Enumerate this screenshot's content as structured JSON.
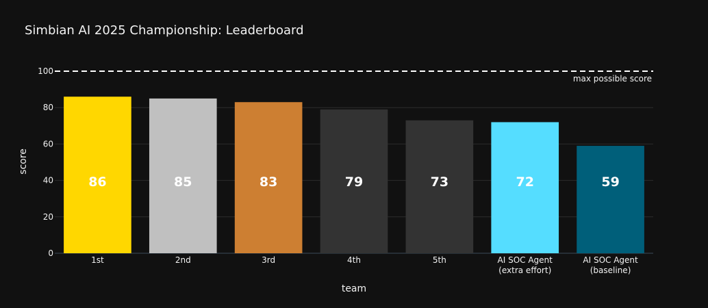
{
  "chart_data": {
    "type": "bar",
    "title": "Simbian AI 2025 Championship: Leaderboard",
    "xlabel": "team",
    "ylabel": "score",
    "ylim": [
      0,
      100
    ],
    "yticks": [
      0,
      20,
      40,
      60,
      80,
      100
    ],
    "grid": true,
    "categories": [
      [
        "1st"
      ],
      [
        "2nd"
      ],
      [
        "3rd"
      ],
      [
        "4th"
      ],
      [
        "5th"
      ],
      [
        "AI SOC Agent",
        "(extra effort)"
      ],
      [
        "AI SOC Agent",
        "(baseline)"
      ]
    ],
    "values": [
      86,
      85,
      83,
      79,
      73,
      72,
      59
    ],
    "colors": [
      "#FFD700",
      "#C0C0C0",
      "#CD7F32",
      "#333333",
      "#333333",
      "#55DDFF",
      "#005F7A"
    ],
    "reference_line": {
      "value": 100,
      "style": "dashed",
      "color": "#ffffff",
      "label": "max possible score"
    },
    "background": "#111111",
    "grid_color": "#2c2c2c"
  }
}
